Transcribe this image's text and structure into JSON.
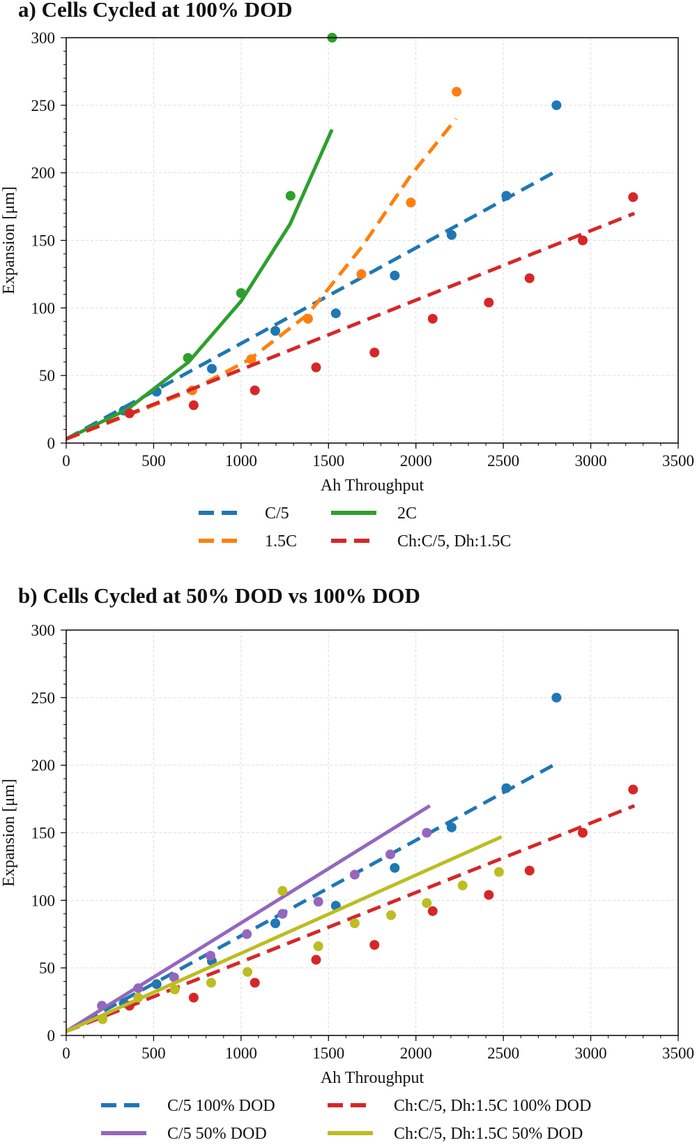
{
  "chart_data": [
    {
      "type": "scatter",
      "title": "a) Cells Cycled at 100% DOD",
      "xlabel": "Ah Throughput",
      "ylabel": "Expansion [μm]",
      "xlim": [
        0,
        3500
      ],
      "ylim": [
        0,
        300
      ],
      "xticks": [
        0,
        500,
        1000,
        1500,
        2000,
        2500,
        3000,
        3500
      ],
      "yticks": [
        0,
        50,
        100,
        150,
        200,
        250,
        300
      ],
      "grid": true,
      "legend_placement": "bottom",
      "series": [
        {
          "name": "C/5",
          "color": "#1f77b4",
          "line_style": "dashed",
          "points": [
            [
              329,
              24
            ],
            [
              517,
              38
            ],
            [
              833,
              55
            ],
            [
              1196,
              83
            ],
            [
              1542,
              96
            ],
            [
              1879,
              124
            ],
            [
              2204,
              154
            ],
            [
              2517,
              183
            ],
            [
              2804,
              250
            ]
          ],
          "fit": [
            [
              0,
              3
            ],
            [
              2800,
              201
            ]
          ]
        },
        {
          "name": "1.5C",
          "color": "#ff7f0e",
          "line_style": "dashed",
          "points": [
            [
              721,
              39
            ],
            [
              1058,
              62
            ],
            [
              1383,
              92
            ],
            [
              1688,
              125
            ],
            [
              1971,
              178
            ],
            [
              2233,
              260
            ]
          ],
          "fit": [
            [
              0,
              3
            ],
            [
              700,
              38
            ],
            [
              1050,
              62
            ],
            [
              1380,
              95
            ],
            [
              1690,
              145
            ],
            [
              1970,
              198
            ],
            [
              2230,
              240
            ]
          ]
        },
        {
          "name": "2C",
          "color": "#2ca02c",
          "line_style": "solid",
          "points": [
            [
              696,
              63
            ],
            [
              1000,
              111
            ],
            [
              1283,
              183
            ],
            [
              1521,
              300
            ]
          ],
          "fit": [
            [
              0,
              3
            ],
            [
              350,
              25
            ],
            [
              700,
              60
            ],
            [
              1000,
              105
            ],
            [
              1280,
              162
            ],
            [
              1520,
              232
            ]
          ]
        },
        {
          "name": "Ch:C/5, Dh:1.5C",
          "color": "#d62728",
          "line_style": "dashed",
          "points": [
            [
              362,
              22
            ],
            [
              729,
              28
            ],
            [
              1079,
              39
            ],
            [
              1429,
              56
            ],
            [
              1763,
              67
            ],
            [
              2096,
              92
            ],
            [
              2417,
              104
            ],
            [
              2650,
              122
            ],
            [
              2954,
              150
            ],
            [
              3242,
              182
            ]
          ],
          "fit": [
            [
              0,
              3
            ],
            [
              3250,
              170
            ]
          ]
        }
      ]
    },
    {
      "type": "scatter",
      "title": "b) Cells Cycled at 50% DOD vs 100% DOD",
      "xlabel": "Ah Throughput",
      "ylabel": "Expansion [μm]",
      "xlim": [
        0,
        3500
      ],
      "ylim": [
        0,
        300
      ],
      "xticks": [
        0,
        500,
        1000,
        1500,
        2000,
        2500,
        3000,
        3500
      ],
      "yticks": [
        0,
        50,
        100,
        150,
        200,
        250,
        300
      ],
      "grid": true,
      "legend_placement": "bottom",
      "series": [
        {
          "name": "C/5 100% DOD",
          "color": "#1f77b4",
          "line_style": "dashed",
          "points": [
            [
              329,
              24
            ],
            [
              517,
              38
            ],
            [
              833,
              55
            ],
            [
              1196,
              83
            ],
            [
              1542,
              96
            ],
            [
              1879,
              124
            ],
            [
              2204,
              154
            ],
            [
              2517,
              183
            ],
            [
              2804,
              250
            ]
          ],
          "fit": [
            [
              0,
              3
            ],
            [
              2800,
              201
            ]
          ]
        },
        {
          "name": "C/5 50% DOD",
          "color": "#9467bd",
          "line_style": "solid",
          "points": [
            [
              204,
              22
            ],
            [
              412,
              35
            ],
            [
              617,
              43
            ],
            [
              825,
              59
            ],
            [
              1033,
              75
            ],
            [
              1237,
              90
            ],
            [
              1442,
              99
            ],
            [
              1650,
              119
            ],
            [
              1854,
              134
            ],
            [
              2062,
              150
            ]
          ],
          "fit": [
            [
              0,
              3
            ],
            [
              2080,
              170
            ]
          ]
        },
        {
          "name": "Ch:C/5, Dh:1.5C 100% DOD",
          "color": "#d62728",
          "line_style": "dashed",
          "points": [
            [
              362,
              22
            ],
            [
              729,
              28
            ],
            [
              1079,
              39
            ],
            [
              1429,
              56
            ],
            [
              1763,
              67
            ],
            [
              2096,
              92
            ],
            [
              2417,
              104
            ],
            [
              2650,
              122
            ],
            [
              2954,
              150
            ],
            [
              3242,
              182
            ]
          ],
          "fit": [
            [
              0,
              3
            ],
            [
              3250,
              170
            ]
          ]
        },
        {
          "name": "Ch:C/5, Dh:1.5C 50% DOD",
          "color": "#bcbd22",
          "line_style": "solid",
          "points": [
            [
              208,
              12
            ],
            [
              412,
              28
            ],
            [
              621,
              34
            ],
            [
              829,
              39
            ],
            [
              1037,
              47
            ],
            [
              1237,
              107
            ],
            [
              1442,
              66
            ],
            [
              1650,
              83
            ],
            [
              1858,
              89
            ],
            [
              2062,
              98
            ],
            [
              2267,
              111
            ],
            [
              2475,
              121
            ]
          ],
          "fit": [
            [
              0,
              3
            ],
            [
              2490,
              147
            ]
          ]
        }
      ]
    }
  ]
}
